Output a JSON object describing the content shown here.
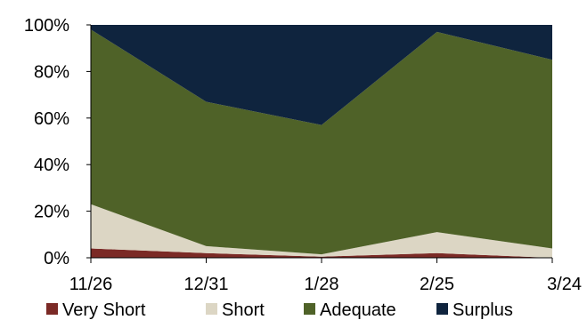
{
  "chart_data": {
    "type": "area",
    "stacked": true,
    "categories": [
      "11/26",
      "12/31",
      "1/28",
      "2/25",
      "3/24"
    ],
    "series": [
      {
        "name": "Very Short",
        "color": "#7b2a26",
        "values": [
          4,
          2,
          0.5,
          2,
          0
        ]
      },
      {
        "name": "Short",
        "color": "#dcd6c4",
        "values": [
          19,
          3,
          1,
          9,
          4
        ]
      },
      {
        "name": "Adequate",
        "color": "#4f6228",
        "values": [
          75,
          62,
          55.5,
          86,
          81
        ]
      },
      {
        "name": "Surplus",
        "color": "#0f243e",
        "values": [
          2,
          33,
          43,
          3,
          15
        ]
      }
    ],
    "y_ticks": [
      "0%",
      "20%",
      "40%",
      "60%",
      "80%",
      "100%"
    ],
    "ylim": [
      0,
      100
    ],
    "title": "",
    "xlabel": "",
    "ylabel": "",
    "grid": false,
    "legend": "bottom"
  }
}
